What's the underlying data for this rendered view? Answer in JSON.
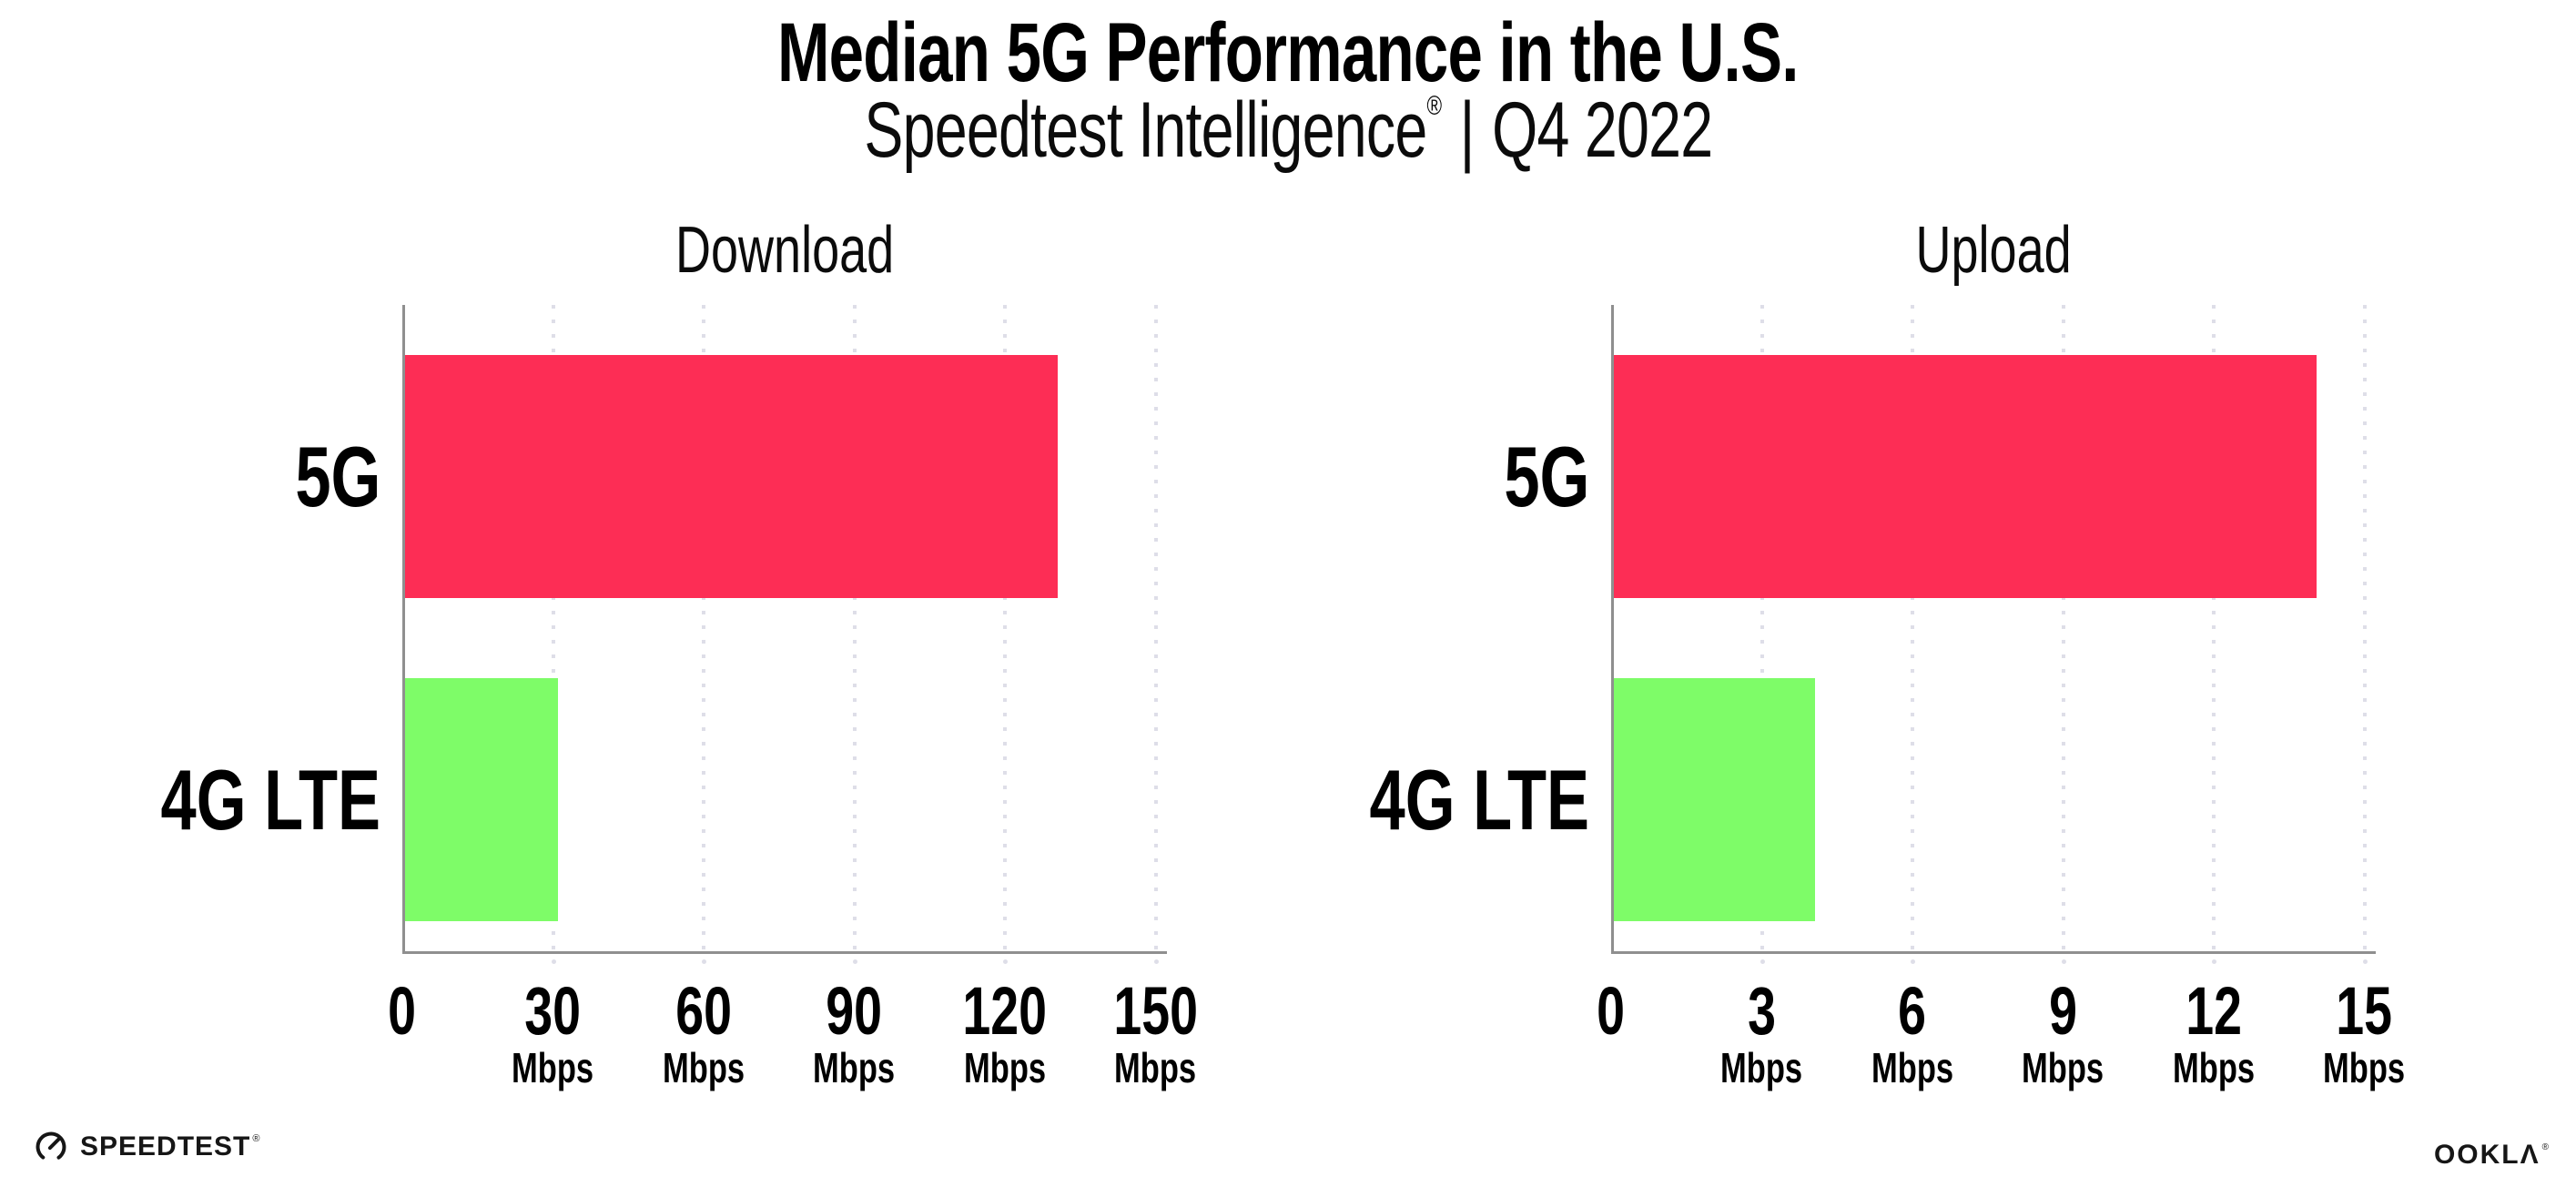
{
  "header": {
    "title": "Median 5G Performance in the U.S.",
    "subtitle_brand": "Speedtest Intelligence",
    "subtitle_reg": "®",
    "subtitle_sep": "|",
    "subtitle_period": "Q4 2022"
  },
  "chart_data": [
    {
      "type": "bar",
      "orientation": "horizontal",
      "title": "Download",
      "categories": [
        "5G",
        "4G LTE"
      ],
      "values": [
        130,
        30.5
      ],
      "unit": "Mbps",
      "xticks": [
        0,
        30,
        60,
        90,
        120,
        150
      ],
      "xlim": [
        0,
        152
      ],
      "grid": "dotted-vertical",
      "bar_colors": [
        "#FD2D55",
        "#7EFC68"
      ]
    },
    {
      "type": "bar",
      "orientation": "horizontal",
      "title": "Upload",
      "categories": [
        "5G",
        "4G LTE"
      ],
      "values": [
        14,
        4
      ],
      "unit": "Mbps",
      "xticks": [
        0,
        3,
        6,
        9,
        12,
        15
      ],
      "xlim": [
        0,
        15.2
      ],
      "grid": "dotted-vertical",
      "bar_colors": [
        "#FD2D55",
        "#7EFC68"
      ]
    }
  ],
  "footer": {
    "speedtest_label": "SPEEDTEST",
    "speedtest_reg": "®",
    "ookla_label": "OOKLA",
    "ookla_reg": "®"
  },
  "colors": {
    "bar_5g": "#FD2D55",
    "bar_4g_lte": "#7EFC68",
    "grid": "#DEDEE8",
    "axis": "#8F8F8F",
    "text": "#000000",
    "logo": "#161616"
  }
}
